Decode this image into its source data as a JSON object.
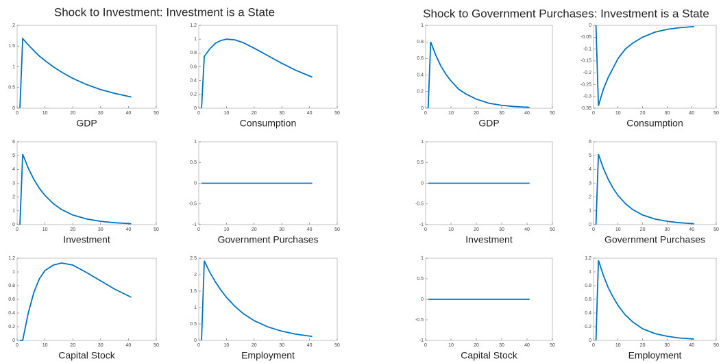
{
  "panel_titles": [
    "Shock to Investment: Investment is a State",
    "Shock to Government Purchases: Investment is a State"
  ],
  "chart_data": [
    {
      "type": "line",
      "xlabel": "GDP",
      "color": "#0072bd",
      "x": [
        1,
        2,
        4,
        6,
        8,
        10,
        13,
        16,
        20,
        25,
        30,
        35,
        41
      ],
      "values": [
        0,
        1.68,
        1.53,
        1.39,
        1.26,
        1.15,
        1.0,
        0.87,
        0.72,
        0.57,
        0.45,
        0.36,
        0.27
      ],
      "xlim": [
        0,
        50
      ],
      "xticks": [
        0,
        10,
        20,
        30,
        40,
        50
      ],
      "ylim": [
        0,
        2
      ],
      "yticks": [
        0,
        0.5,
        1,
        1.5,
        2
      ]
    },
    {
      "type": "line",
      "xlabel": "Consumption",
      "color": "#0072bd",
      "x": [
        1,
        2,
        4,
        6,
        8,
        10,
        13,
        16,
        20,
        25,
        30,
        35,
        41
      ],
      "values": [
        0,
        0.75,
        0.86,
        0.94,
        0.98,
        1.0,
        0.99,
        0.95,
        0.87,
        0.76,
        0.65,
        0.55,
        0.45
      ],
      "xlim": [
        0,
        50
      ],
      "xticks": [
        0,
        10,
        20,
        30,
        40,
        50
      ],
      "ylim": [
        0,
        1.2
      ],
      "yticks": [
        0,
        0.2,
        0.4,
        0.6,
        0.8,
        1,
        1.2
      ]
    },
    {
      "type": "line",
      "xlabel": "Investment",
      "color": "#0072bd",
      "x": [
        1,
        2,
        4,
        6,
        8,
        10,
        13,
        16,
        20,
        25,
        30,
        35,
        41
      ],
      "values": [
        0,
        5.1,
        4.09,
        3.28,
        2.63,
        2.11,
        1.52,
        1.09,
        0.7,
        0.41,
        0.24,
        0.14,
        0.07
      ],
      "xlim": [
        0,
        50
      ],
      "xticks": [
        0,
        10,
        20,
        30,
        40,
        50
      ],
      "ylim": [
        0,
        6
      ],
      "yticks": [
        0,
        1,
        2,
        3,
        4,
        5,
        6
      ]
    },
    {
      "type": "line",
      "xlabel": "Government Purchases",
      "color": "#0072bd",
      "x": [
        1,
        2,
        4,
        6,
        8,
        10,
        13,
        16,
        20,
        25,
        30,
        35,
        41
      ],
      "values": [
        0,
        0,
        0,
        0,
        0,
        0,
        0,
        0,
        0,
        0,
        0,
        0,
        0
      ],
      "xlim": [
        0,
        50
      ],
      "xticks": [
        0,
        10,
        20,
        30,
        40,
        50
      ],
      "ylim": [
        -1,
        1
      ],
      "yticks": [
        -1,
        -0.5,
        0,
        0.5,
        1
      ]
    },
    {
      "type": "line",
      "xlabel": "Capital Stock",
      "color": "#0072bd",
      "x": [
        1,
        2,
        4,
        6,
        8,
        10,
        13,
        16,
        20,
        25,
        30,
        35,
        41
      ],
      "values": [
        0,
        0,
        0.4,
        0.7,
        0.9,
        1.02,
        1.1,
        1.13,
        1.1,
        0.99,
        0.87,
        0.75,
        0.63
      ],
      "xlim": [
        0,
        50
      ],
      "xticks": [
        0,
        10,
        20,
        30,
        40,
        50
      ],
      "ylim": [
        0,
        1.2
      ],
      "yticks": [
        0,
        0.2,
        0.4,
        0.6,
        0.8,
        1,
        1.2
      ]
    },
    {
      "type": "line",
      "xlabel": "Employment",
      "color": "#0072bd",
      "x": [
        1,
        2,
        4,
        6,
        8,
        10,
        13,
        16,
        20,
        25,
        30,
        35,
        41
      ],
      "values": [
        0,
        2.42,
        2.07,
        1.78,
        1.53,
        1.31,
        1.04,
        0.82,
        0.6,
        0.41,
        0.28,
        0.19,
        0.12
      ],
      "xlim": [
        0,
        50
      ],
      "xticks": [
        0,
        10,
        20,
        30,
        40,
        50
      ],
      "ylim": [
        0,
        2.5
      ],
      "yticks": [
        0,
        0.5,
        1,
        1.5,
        2,
        2.5
      ]
    },
    {
      "type": "line",
      "xlabel": "GDP",
      "color": "#0072bd",
      "x": [
        1,
        2,
        4,
        6,
        8,
        10,
        13,
        16,
        20,
        25,
        30,
        35,
        41
      ],
      "values": [
        0,
        0.8,
        0.64,
        0.51,
        0.41,
        0.33,
        0.23,
        0.17,
        0.11,
        0.06,
        0.035,
        0.02,
        0.01
      ],
      "xlim": [
        0,
        50
      ],
      "xticks": [
        0,
        10,
        20,
        30,
        40,
        50
      ],
      "ylim": [
        0,
        1
      ],
      "yticks": [
        0,
        0.2,
        0.4,
        0.6,
        0.8,
        1
      ]
    },
    {
      "type": "line",
      "xlabel": "Consumption",
      "color": "#0072bd",
      "x": [
        1,
        2,
        4,
        6,
        8,
        10,
        13,
        16,
        20,
        25,
        30,
        35,
        41
      ],
      "values": [
        0,
        -0.34,
        -0.27,
        -0.22,
        -0.18,
        -0.14,
        -0.1,
        -0.075,
        -0.05,
        -0.029,
        -0.017,
        -0.01,
        -0.005
      ],
      "xlim": [
        0,
        50
      ],
      "xticks": [
        0,
        10,
        20,
        30,
        40,
        50
      ],
      "ylim": [
        -0.35,
        0
      ],
      "yticks": [
        -0.35,
        -0.3,
        -0.25,
        -0.2,
        -0.15,
        -0.1,
        -0.05,
        0
      ]
    },
    {
      "type": "line",
      "xlabel": "Investment",
      "color": "#0072bd",
      "x": [
        1,
        2,
        4,
        6,
        8,
        10,
        13,
        16,
        20,
        25,
        30,
        35,
        41
      ],
      "values": [
        0,
        0,
        0,
        0,
        0,
        0,
        0,
        0,
        0,
        0,
        0,
        0,
        0
      ],
      "xlim": [
        0,
        50
      ],
      "xticks": [
        0,
        10,
        20,
        30,
        40,
        50
      ],
      "ylim": [
        -1,
        1
      ],
      "yticks": [
        -1,
        -0.5,
        0,
        0.5,
        1
      ]
    },
    {
      "type": "line",
      "xlabel": "Government Purchases",
      "color": "#0072bd",
      "x": [
        1,
        2,
        4,
        6,
        8,
        10,
        13,
        16,
        20,
        25,
        30,
        35,
        41
      ],
      "values": [
        0,
        5.1,
        4.09,
        3.28,
        2.63,
        2.11,
        1.52,
        1.09,
        0.7,
        0.41,
        0.24,
        0.14,
        0.07
      ],
      "xlim": [
        0,
        50
      ],
      "xticks": [
        0,
        10,
        20,
        30,
        40,
        50
      ],
      "ylim": [
        0,
        6
      ],
      "yticks": [
        0,
        1,
        2,
        3,
        4,
        5,
        6
      ]
    },
    {
      "type": "line",
      "xlabel": "Capital Stock",
      "color": "#0072bd",
      "x": [
        1,
        2,
        4,
        6,
        8,
        10,
        13,
        16,
        20,
        25,
        30,
        35,
        41
      ],
      "values": [
        0,
        0,
        0,
        0,
        0,
        0,
        0,
        0,
        0,
        0,
        0,
        0,
        0
      ],
      "xlim": [
        0,
        50
      ],
      "xticks": [
        0,
        10,
        20,
        30,
        40,
        50
      ],
      "ylim": [
        -1,
        1
      ],
      "yticks": [
        -1,
        -0.5,
        0,
        0.5,
        1
      ]
    },
    {
      "type": "line",
      "xlabel": "Employment",
      "color": "#0072bd",
      "x": [
        1,
        2,
        4,
        6,
        8,
        10,
        13,
        16,
        20,
        25,
        30,
        35,
        41
      ],
      "values": [
        0,
        1.17,
        0.95,
        0.77,
        0.63,
        0.51,
        0.37,
        0.27,
        0.17,
        0.1,
        0.06,
        0.035,
        0.02
      ],
      "xlim": [
        0,
        50
      ],
      "xticks": [
        0,
        10,
        20,
        30,
        40,
        50
      ],
      "ylim": [
        0,
        1.2
      ],
      "yticks": [
        0,
        0.2,
        0.4,
        0.6,
        0.8,
        1,
        1.2
      ]
    }
  ]
}
